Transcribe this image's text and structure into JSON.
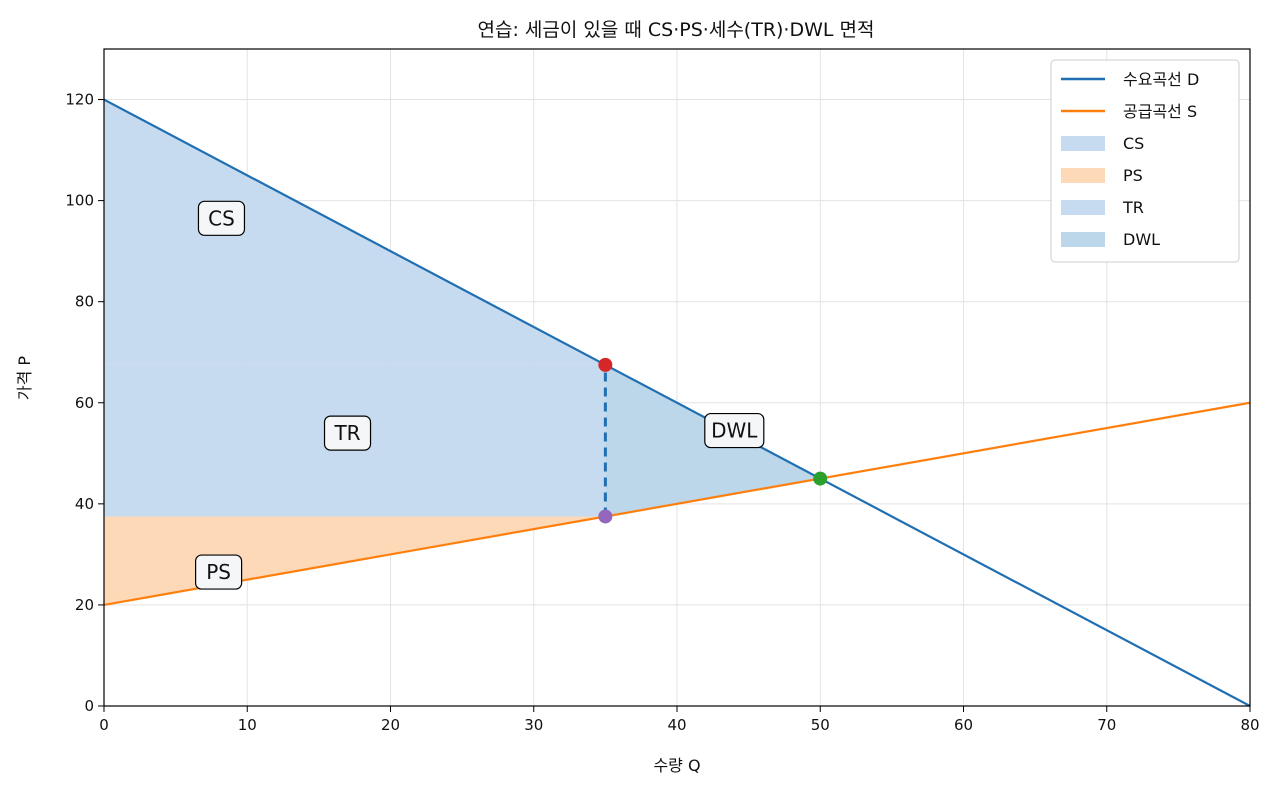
{
  "chart_data": {
    "type": "line",
    "title": "연습: 세금이 있을 때 CS·PS·세수(TR)·DWL 면적",
    "xlabel": "수량 Q",
    "ylabel": "가격 P",
    "xlim": [
      0,
      80
    ],
    "ylim": [
      0,
      130
    ],
    "xticks": [
      0,
      10,
      20,
      30,
      40,
      50,
      60,
      70,
      80
    ],
    "yticks": [
      0,
      20,
      40,
      60,
      80,
      100,
      120
    ],
    "grid": true,
    "legend_position": "top-right",
    "series": [
      {
        "name": "수요곡선 D",
        "color": "#1f6fb2",
        "x": [
          0,
          80
        ],
        "y": [
          120,
          0
        ]
      },
      {
        "name": "공급곡선 S",
        "color": "#ff7f0e",
        "x": [
          0,
          80
        ],
        "y": [
          20,
          60
        ]
      }
    ],
    "areas": [
      {
        "name": "CS",
        "color": "#c6dbef",
        "points": [
          [
            0,
            120
          ],
          [
            35,
            67.5
          ],
          [
            0,
            67.5
          ]
        ]
      },
      {
        "name": "PS",
        "color": "#fdd9b8",
        "points": [
          [
            0,
            37.5
          ],
          [
            35,
            37.5
          ],
          [
            0,
            20
          ]
        ]
      },
      {
        "name": "TR",
        "color": "#c6dbef",
        "points": [
          [
            0,
            67.5
          ],
          [
            35,
            67.5
          ],
          [
            35,
            37.5
          ],
          [
            0,
            37.5
          ]
        ]
      },
      {
        "name": "DWL",
        "color": "#bcd6ea",
        "points": [
          [
            35,
            67.5
          ],
          [
            50,
            45
          ],
          [
            35,
            37.5
          ]
        ]
      }
    ],
    "region_labels": [
      {
        "text": "CS",
        "x": 8.2,
        "y": 96.5
      },
      {
        "text": "TR",
        "x": 17,
        "y": 54
      },
      {
        "text": "DWL",
        "x": 44,
        "y": 54.5
      },
      {
        "text": "PS",
        "x": 8,
        "y": 26.5
      }
    ],
    "points": [
      {
        "name": "buyer-price-point",
        "x": 35,
        "y": 67.5,
        "color": "#d62728"
      },
      {
        "name": "seller-price-point",
        "x": 35,
        "y": 37.5,
        "color": "#9467bd"
      },
      {
        "name": "equilibrium-point",
        "x": 50,
        "y": 45,
        "color": "#2ca02c"
      }
    ],
    "tax_wedge": {
      "x": 35,
      "y_low": 37.5,
      "y_high": 67.5,
      "color": "#1f6fb2"
    }
  }
}
